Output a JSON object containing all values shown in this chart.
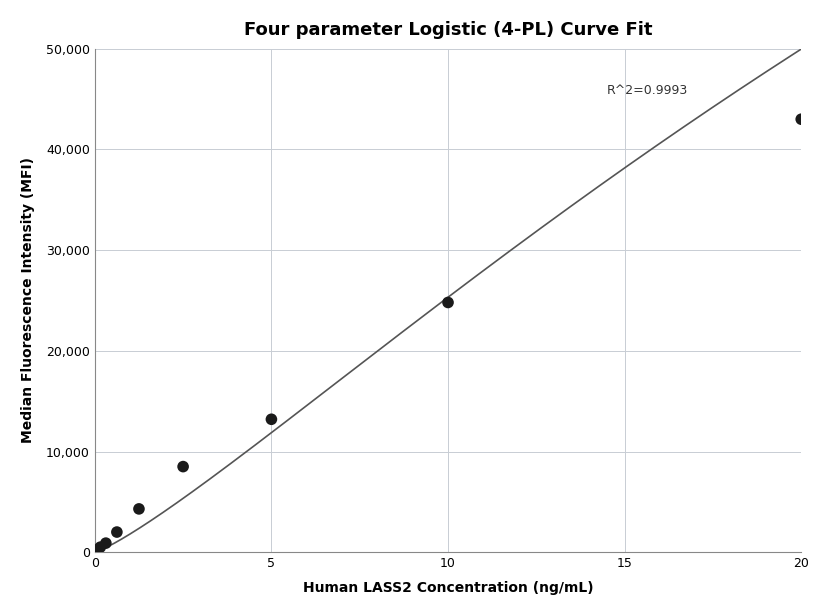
{
  "title": "Four parameter Logistic (4-PL) Curve Fit",
  "xlabel": "Human LASS2 Concentration (ng/mL)",
  "ylabel": "Median Fluorescence Intensity (MFI)",
  "scatter_x": [
    0.078,
    0.156,
    0.313,
    0.625,
    1.25,
    2.5,
    5.0,
    10.0,
    20.0
  ],
  "scatter_y": [
    250,
    500,
    900,
    2000,
    4300,
    8500,
    13200,
    24800,
    43000
  ],
  "xlim": [
    0,
    20
  ],
  "ylim": [
    0,
    50000
  ],
  "xticks": [
    0,
    5,
    10,
    15,
    20
  ],
  "yticks": [
    0,
    10000,
    20000,
    30000,
    40000,
    50000
  ],
  "r2_text": "R^2=0.9993",
  "r2_x": 14.5,
  "r2_y": 46500,
  "dot_color": "#1a1a1a",
  "dot_size": 70,
  "line_color": "#555555",
  "line_width": 1.2,
  "background_color": "#ffffff",
  "grid_color": "#c8cdd4",
  "title_fontsize": 13,
  "label_fontsize": 10,
  "tick_fontsize": 9,
  "annotation_fontsize": 9
}
